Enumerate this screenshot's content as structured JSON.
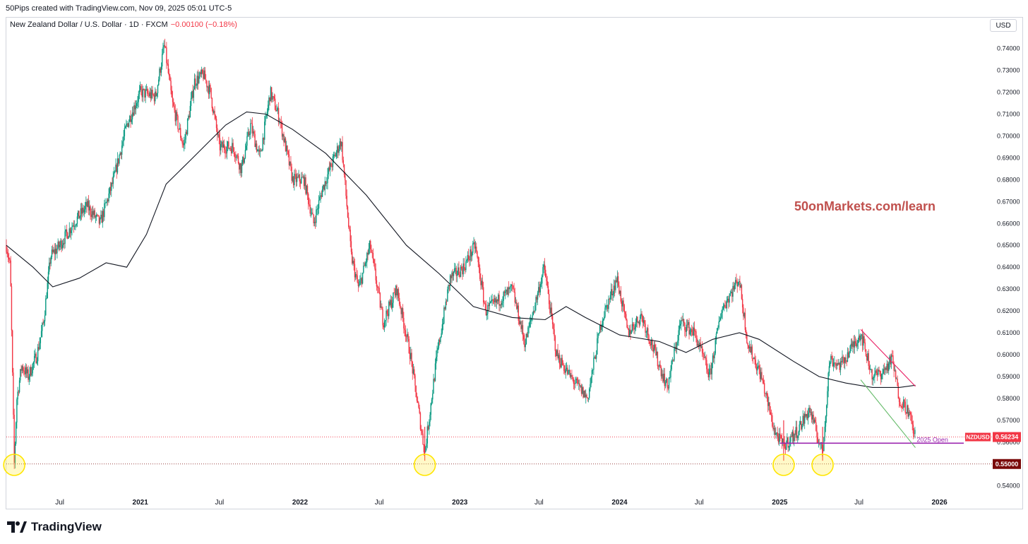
{
  "header": {
    "credit": "50Pips created with TradingView.com, Nov 09, 2025 05:01 UTC-5",
    "symbol_title": "New Zealand Dollar / U.S. Dollar · 1D · FXCM",
    "change": "−0.00100 (−0.18%)",
    "currency": "USD"
  },
  "footer": {
    "brand": "TradingView",
    "logo_icon": "tradingview-logo-icon"
  },
  "watermark": {
    "text": "50onMarkets.com/learn",
    "color": "#c0504d"
  },
  "colors": {
    "up": "#089981",
    "down": "#f23645",
    "ma": "#131722",
    "level_marker": "#7a0a0a",
    "annotation": "#9c27b0",
    "highlight": "#ffe600"
  },
  "chart_data": {
    "type": "candlestick",
    "symbol": "NZDUSD",
    "interval": "1D",
    "x_range": [
      "2020-03-01",
      "2026-05-01"
    ],
    "ylim": [
      0.537,
      0.747
    ],
    "yticks": [
      "0.74000",
      "0.73000",
      "0.72000",
      "0.71000",
      "0.70000",
      "0.69000",
      "0.68000",
      "0.67000",
      "0.66000",
      "0.65000",
      "0.64000",
      "0.63000",
      "0.62000",
      "0.61000",
      "0.60000",
      "0.59000",
      "0.58000",
      "0.57000",
      "0.56000",
      "0.55000",
      "0.54000"
    ],
    "xticks": [
      {
        "date": "2020-07-01",
        "label": "Jul",
        "bold": false
      },
      {
        "date": "2021-01-01",
        "label": "2021",
        "bold": true
      },
      {
        "date": "2021-07-01",
        "label": "Jul",
        "bold": false
      },
      {
        "date": "2022-01-01",
        "label": "2022",
        "bold": true
      },
      {
        "date": "2022-07-01",
        "label": "Jul",
        "bold": false
      },
      {
        "date": "2023-01-01",
        "label": "2023",
        "bold": true
      },
      {
        "date": "2023-07-01",
        "label": "Jul",
        "bold": false
      },
      {
        "date": "2024-01-01",
        "label": "2024",
        "bold": true
      },
      {
        "date": "2024-07-01",
        "label": "Jul",
        "bold": false
      },
      {
        "date": "2025-01-01",
        "label": "2025",
        "bold": true
      },
      {
        "date": "2025-07-01",
        "label": "Jul",
        "bold": false
      },
      {
        "date": "2026-01-01",
        "label": "2026",
        "bold": true
      }
    ],
    "price_path": [
      [
        "2020-03-01",
        0.65
      ],
      [
        "2020-03-10",
        0.64
      ],
      [
        "2020-03-19",
        0.55
      ],
      [
        "2020-03-25",
        0.58
      ],
      [
        "2020-04-05",
        0.595
      ],
      [
        "2020-04-20",
        0.59
      ],
      [
        "2020-05-10",
        0.6
      ],
      [
        "2020-05-25",
        0.615
      ],
      [
        "2020-06-10",
        0.645
      ],
      [
        "2020-07-01",
        0.65
      ],
      [
        "2020-08-01",
        0.66
      ],
      [
        "2020-09-01",
        0.668
      ],
      [
        "2020-10-01",
        0.66
      ],
      [
        "2020-11-01",
        0.68
      ],
      [
        "2020-12-01",
        0.705
      ],
      [
        "2021-01-01",
        0.72
      ],
      [
        "2021-02-05",
        0.718
      ],
      [
        "2021-02-25",
        0.742
      ],
      [
        "2021-03-15",
        0.715
      ],
      [
        "2021-04-10",
        0.695
      ],
      [
        "2021-05-05",
        0.725
      ],
      [
        "2021-05-25",
        0.728
      ],
      [
        "2021-06-10",
        0.72
      ],
      [
        "2021-07-01",
        0.695
      ],
      [
        "2021-08-01",
        0.695
      ],
      [
        "2021-08-20",
        0.685
      ],
      [
        "2021-09-10",
        0.705
      ],
      [
        "2021-10-01",
        0.69
      ],
      [
        "2021-10-25",
        0.72
      ],
      [
        "2021-11-15",
        0.708
      ],
      [
        "2021-12-15",
        0.68
      ],
      [
        "2022-01-10",
        0.68
      ],
      [
        "2022-02-01",
        0.66
      ],
      [
        "2022-02-20",
        0.675
      ],
      [
        "2022-03-10",
        0.685
      ],
      [
        "2022-04-05",
        0.698
      ],
      [
        "2022-04-28",
        0.645
      ],
      [
        "2022-05-15",
        0.63
      ],
      [
        "2022-06-10",
        0.65
      ],
      [
        "2022-07-10",
        0.615
      ],
      [
        "2022-08-10",
        0.63
      ],
      [
        "2022-09-10",
        0.6
      ],
      [
        "2022-10-13",
        0.555
      ],
      [
        "2022-11-10",
        0.6
      ],
      [
        "2022-12-10",
        0.635
      ],
      [
        "2023-01-10",
        0.64
      ],
      [
        "2023-02-05",
        0.65
      ],
      [
        "2023-03-01",
        0.62
      ],
      [
        "2023-04-01",
        0.625
      ],
      [
        "2023-05-01",
        0.63
      ],
      [
        "2023-05-30",
        0.605
      ],
      [
        "2023-07-13",
        0.64
      ],
      [
        "2023-08-10",
        0.6
      ],
      [
        "2023-09-10",
        0.59
      ],
      [
        "2023-10-20",
        0.58
      ],
      [
        "2023-11-20",
        0.615
      ],
      [
        "2023-12-26",
        0.635
      ],
      [
        "2024-01-20",
        0.61
      ],
      [
        "2024-02-20",
        0.618
      ],
      [
        "2024-04-19",
        0.585
      ],
      [
        "2024-05-20",
        0.615
      ],
      [
        "2024-06-20",
        0.61
      ],
      [
        "2024-07-25",
        0.59
      ],
      [
        "2024-08-20",
        0.62
      ],
      [
        "2024-09-30",
        0.635
      ],
      [
        "2024-10-20",
        0.605
      ],
      [
        "2024-11-20",
        0.59
      ],
      [
        "2024-12-20",
        0.565
      ],
      [
        "2025-01-10",
        0.558
      ],
      [
        "2025-02-10",
        0.565
      ],
      [
        "2025-03-10",
        0.575
      ],
      [
        "2025-04-09",
        0.555
      ],
      [
        "2025-04-25",
        0.598
      ],
      [
        "2025-05-20",
        0.595
      ],
      [
        "2025-06-20",
        0.605
      ],
      [
        "2025-07-05",
        0.61
      ],
      [
        "2025-08-01",
        0.59
      ],
      [
        "2025-08-25",
        0.592
      ],
      [
        "2025-09-15",
        0.598
      ],
      [
        "2025-10-01",
        0.58
      ],
      [
        "2025-10-20",
        0.575
      ],
      [
        "2025-11-07",
        0.5623
      ]
    ],
    "moving_average": [
      [
        "2020-03-01",
        0.65
      ],
      [
        "2020-05-01",
        0.64
      ],
      [
        "2020-06-15",
        0.631
      ],
      [
        "2020-08-15",
        0.635
      ],
      [
        "2020-10-15",
        0.642
      ],
      [
        "2020-12-01",
        0.64
      ],
      [
        "2021-01-15",
        0.655
      ],
      [
        "2021-03-01",
        0.678
      ],
      [
        "2021-05-01",
        0.69
      ],
      [
        "2021-07-15",
        0.705
      ],
      [
        "2021-09-01",
        0.711
      ],
      [
        "2021-10-15",
        0.71
      ],
      [
        "2021-12-15",
        0.703
      ],
      [
        "2022-03-01",
        0.692
      ],
      [
        "2022-06-01",
        0.673
      ],
      [
        "2022-09-01",
        0.65
      ],
      [
        "2022-11-15",
        0.637
      ],
      [
        "2023-02-01",
        0.622
      ],
      [
        "2023-05-01",
        0.617
      ],
      [
        "2023-07-15",
        0.616
      ],
      [
        "2023-09-01",
        0.622
      ],
      [
        "2023-10-15",
        0.617
      ],
      [
        "2024-01-01",
        0.609
      ],
      [
        "2024-04-01",
        0.606
      ],
      [
        "2024-06-01",
        0.601
      ],
      [
        "2024-08-01",
        0.607
      ],
      [
        "2024-10-01",
        0.61
      ],
      [
        "2024-11-15",
        0.607
      ],
      [
        "2025-02-01",
        0.597
      ],
      [
        "2025-04-01",
        0.59
      ],
      [
        "2025-06-01",
        0.587
      ],
      [
        "2025-08-01",
        0.585
      ],
      [
        "2025-10-01",
        0.585
      ],
      [
        "2025-11-07",
        0.586
      ]
    ],
    "last_price": {
      "label": "NZDUSD",
      "value": "0.56234",
      "price": 0.56234
    },
    "level": {
      "label": "0.55000",
      "price": 0.55
    },
    "open_2025": {
      "label": "2025 Open",
      "price": 0.5595,
      "start": "2025-01-01"
    },
    "trendlines": [
      {
        "color": "#e91e63",
        "from": [
          "2025-07-05",
          0.6115
        ],
        "to": [
          "2025-11-07",
          0.5855
        ]
      },
      {
        "color": "#66bb6a",
        "from": [
          "2025-07-05",
          0.5885
        ],
        "to": [
          "2025-11-07",
          0.5575
        ]
      }
    ],
    "highlights": [
      "2020-03-19",
      "2022-10-13",
      "2025-01-10",
      "2025-04-09"
    ]
  }
}
